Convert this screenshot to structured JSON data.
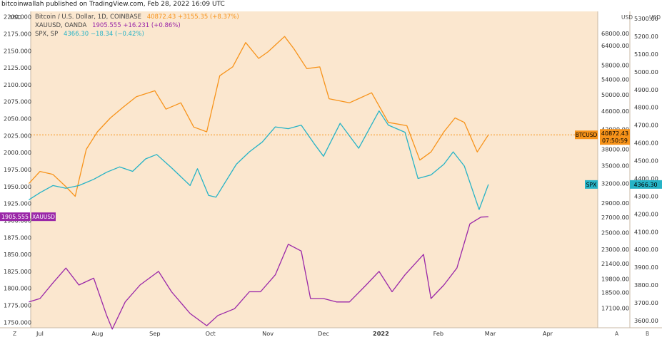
{
  "publisher": "bitcoinwallah published on TradingView.com, Feb 28, 2022 16:09 UTC",
  "colors": {
    "background": "#fbe7cf",
    "btc": "#f7931a",
    "xau": "#9a27a8",
    "spx": "#26b3c6",
    "axis_text": "#333333"
  },
  "legend": [
    {
      "name": "Bitcoin / U.S. Dollar, 1D, COINBASE",
      "value": "40872.43",
      "change": "+3155.35 (+8.37%)"
    },
    {
      "name": "XAUUSD, OANDA",
      "value": "1905.555",
      "change": "+16.231 (+0.86%)"
    },
    {
      "name": "SPX, SP",
      "value": "4366.30",
      "change": "−18.34 (−0.42%)"
    }
  ],
  "corner_labels": {
    "left_top": "USD",
    "right1_top": "USD",
    "right2_top": "USD",
    "left_bottom": "Z",
    "right1_bottom": "A",
    "right2_bottom": "B"
  },
  "price_tags": {
    "btc": {
      "symbol": "BTCUSD",
      "price": "40872.43",
      "countdown": "07:50:59"
    },
    "xau": {
      "symbol": "XAUUSD",
      "price": "1905.555"
    },
    "spx": {
      "symbol": "SPX",
      "price": "4366.30"
    }
  },
  "chart_data": {
    "type": "line",
    "x_labels": [
      "Jul",
      "Aug",
      "Sep",
      "Oct",
      "Nov",
      "Dec",
      "2022",
      "Feb",
      "Mar",
      "Apr"
    ],
    "axes": {
      "xauusd_left": {
        "ticks": [
          "2200.000",
          "2175.000",
          "2150.000",
          "2125.000",
          "2100.000",
          "2075.000",
          "2050.000",
          "2025.000",
          "2000.000",
          "1975.000",
          "1950.000",
          "1925.000",
          "1900.000",
          "1875.000",
          "1850.000",
          "1825.000",
          "1800.000",
          "1775.000",
          "1750.000"
        ],
        "range": [
          1742,
          2208
        ]
      },
      "btcusd_right": {
        "ticks": [
          "68000.00",
          "64000.00",
          "58000.00",
          "54000.00",
          "50000.00",
          "46000.00",
          "42000.00",
          "38000.00",
          "35000.00",
          "32000.00",
          "29000.00",
          "27000.00",
          "25000.00",
          "23000.00",
          "21400.00",
          "19800.00",
          "18500.00",
          "17100.00"
        ],
        "scale": "log"
      },
      "spx_right": {
        "ticks": [
          "5300.00",
          "5200.00",
          "5100.00",
          "5000.00",
          "4900.00",
          "4800.00",
          "4700.00",
          "4600.00",
          "4500.00",
          "4400.00",
          "4300.00",
          "4200.00",
          "4100.00",
          "4000.00",
          "3900.00",
          "3800.00",
          "3700.00",
          "3600.00"
        ],
        "range": [
          3560,
          5340
        ]
      }
    },
    "series": [
      {
        "name": "BTCUSD",
        "dates": [
          "2021-06-25",
          "2021-07-01",
          "2021-07-08",
          "2021-07-15",
          "2021-07-20",
          "2021-07-26",
          "2021-08-01",
          "2021-08-08",
          "2021-08-15",
          "2021-08-22",
          "2021-09-01",
          "2021-09-07",
          "2021-09-15",
          "2021-09-22",
          "2021-09-29",
          "2021-10-06",
          "2021-10-13",
          "2021-10-20",
          "2021-10-27",
          "2021-11-01",
          "2021-11-10",
          "2021-11-15",
          "2021-11-22",
          "2021-11-29",
          "2021-12-04",
          "2021-12-15",
          "2021-12-27",
          "2022-01-05",
          "2022-01-15",
          "2022-01-22",
          "2022-01-28",
          "2022-02-04",
          "2022-02-10",
          "2022-02-15",
          "2022-02-22",
          "2022-02-28"
        ],
        "values": [
          32000,
          34000,
          33500,
          31500,
          30000,
          38000,
          41500,
          44500,
          47000,
          49500,
          51000,
          46500,
          48000,
          42500,
          41500,
          55000,
          57500,
          65000,
          60000,
          62000,
          67000,
          63000,
          57000,
          57500,
          49000,
          48000,
          50500,
          43500,
          42800,
          36000,
          37500,
          41500,
          44500,
          43500,
          37500,
          40872
        ]
      },
      {
        "name": "XAUUSD",
        "dates": [
          "2021-06-25",
          "2021-07-01",
          "2021-07-08",
          "2021-07-15",
          "2021-07-22",
          "2021-07-30",
          "2021-08-06",
          "2021-08-09",
          "2021-08-16",
          "2021-08-24",
          "2021-09-03",
          "2021-09-10",
          "2021-09-20",
          "2021-09-29",
          "2021-10-05",
          "2021-10-14",
          "2021-10-22",
          "2021-10-28",
          "2021-11-05",
          "2021-11-12",
          "2021-11-19",
          "2021-11-24",
          "2021-12-01",
          "2021-12-08",
          "2021-12-15",
          "2021-12-24",
          "2021-12-31",
          "2022-01-07",
          "2022-01-14",
          "2022-01-24",
          "2022-01-28",
          "2022-02-04",
          "2022-02-11",
          "2022-02-18",
          "2022-02-24",
          "2022-02-28"
        ],
        "values": [
          1780,
          1785,
          1808,
          1830,
          1805,
          1815,
          1760,
          1740,
          1780,
          1805,
          1825,
          1795,
          1763,
          1745,
          1760,
          1770,
          1795,
          1795,
          1820,
          1865,
          1855,
          1785,
          1785,
          1780,
          1780,
          1805,
          1825,
          1795,
          1820,
          1850,
          1785,
          1805,
          1830,
          1895,
          1905,
          1905.555
        ]
      },
      {
        "name": "SPX",
        "dates": [
          "2021-06-25",
          "2021-07-01",
          "2021-07-08",
          "2021-07-15",
          "2021-07-22",
          "2021-07-30",
          "2021-08-06",
          "2021-08-13",
          "2021-08-20",
          "2021-08-27",
          "2021-09-02",
          "2021-09-10",
          "2021-09-20",
          "2021-09-24",
          "2021-09-30",
          "2021-10-04",
          "2021-10-15",
          "2021-10-22",
          "2021-10-29",
          "2021-11-05",
          "2021-11-12",
          "2021-11-19",
          "2021-11-26",
          "2021-12-01",
          "2021-12-10",
          "2021-12-20",
          "2021-12-31",
          "2022-01-05",
          "2022-01-14",
          "2022-01-21",
          "2022-01-28",
          "2022-02-04",
          "2022-02-09",
          "2022-02-15",
          "2022-02-23",
          "2022-02-28"
        ],
        "values": [
          4280,
          4320,
          4360,
          4345,
          4360,
          4395,
          4435,
          4465,
          4440,
          4510,
          4535,
          4460,
          4360,
          4455,
          4305,
          4295,
          4480,
          4550,
          4605,
          4690,
          4680,
          4700,
          4595,
          4525,
          4710,
          4570,
          4780,
          4700,
          4660,
          4400,
          4420,
          4480,
          4550,
          4470,
          4225,
          4366.3
        ]
      }
    ]
  }
}
